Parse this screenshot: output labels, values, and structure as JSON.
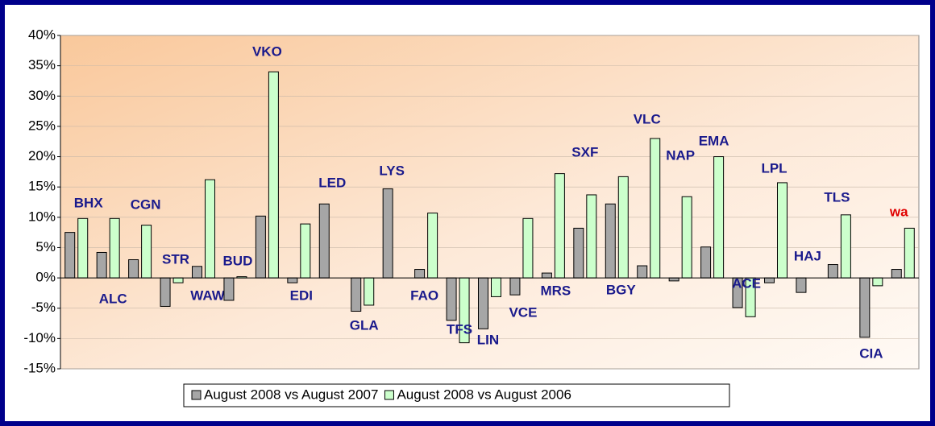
{
  "chart_data": {
    "type": "bar",
    "categories": [
      "BHX",
      "ALC",
      "CGN",
      "STR",
      "WAW",
      "BUD",
      "VKO",
      "EDI",
      "LED",
      "GLA",
      "LYS",
      "FAO",
      "TFS",
      "LIN",
      "VCE",
      "MRS",
      "SXF",
      "BGY",
      "VLC",
      "NAP",
      "EMA",
      "ACE",
      "LPL",
      "HAJ",
      "TLS",
      "CIA",
      "wa"
    ],
    "series": [
      {
        "name": "August 2008 vs August 2007",
        "color": "#a6a6a6",
        "values": [
          7.5,
          4.2,
          3,
          -4.7,
          1.9,
          -3.7,
          10.2,
          -0.8,
          12.2,
          -5.5,
          14.7,
          1.4,
          -7,
          -8.4,
          -2.8,
          0.8,
          8.2,
          12.2,
          2,
          -0.5,
          5.1,
          -4.9,
          -0.8,
          -2.4,
          2.2,
          -9.8,
          1.4
        ]
      },
      {
        "name": "August 2008 vs August 2006",
        "color": "#ccffcc",
        "values": [
          9.8,
          9.8,
          8.7,
          -0.8,
          16.2,
          0.2,
          34,
          8.9,
          null,
          -4.5,
          null,
          10.7,
          -10.7,
          -3.1,
          9.8,
          17.2,
          13.7,
          16.7,
          23,
          13.4,
          20,
          -6.4,
          15.7,
          null,
          10.4,
          -1.3,
          8.2
        ]
      }
    ],
    "ylim": [
      -15,
      40
    ],
    "yticks": [
      {
        "value": -15,
        "label": "-15%"
      },
      {
        "value": -10,
        "label": "-10%"
      },
      {
        "value": -5,
        "label": "-5%"
      },
      {
        "value": 0,
        "label": "0%"
      },
      {
        "value": 5,
        "label": "5%"
      },
      {
        "value": 10,
        "label": "10%"
      },
      {
        "value": 15,
        "label": "15%"
      },
      {
        "value": 20,
        "label": "20%"
      },
      {
        "value": 25,
        "label": "25%"
      },
      {
        "value": 30,
        "label": "30%"
      },
      {
        "value": 35,
        "label": "35%"
      },
      {
        "value": 40,
        "label": "40%"
      }
    ],
    "grid": true,
    "legend": "bottom"
  }
}
